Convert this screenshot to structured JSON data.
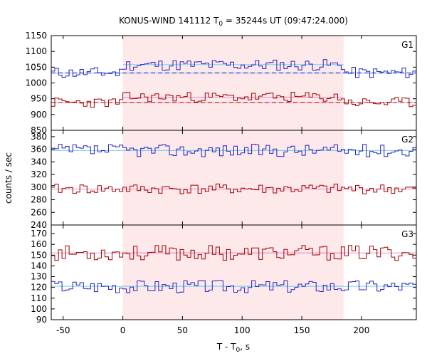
{
  "chart_data": {
    "type": "line",
    "title_main": "KONUS-WIND 141112 T",
    "title_sub": "0",
    "title_rest": " = 35244s UT (09:47:24.000)",
    "xlabel_main": "T - T",
    "xlabel_sub": "0",
    "xlabel_rest": ", s",
    "ylabel": "counts / sec",
    "xlim": [
      -60,
      246
    ],
    "xticks": [
      -50,
      0,
      50,
      100,
      150,
      200
    ],
    "xtick_labels": [
      "-50",
      "0",
      "50",
      "100",
      "150",
      "200"
    ],
    "highlight_interval": [
      0,
      185
    ],
    "highlight_color": "#fde8ea",
    "bin_width": 3,
    "colors": {
      "blue": "#2323c8",
      "red": "#a00000",
      "fit_blue": "#7ccfe6",
      "fit_red": "#e68fc9"
    },
    "panels": [
      {
        "label": "G1",
        "ylim": [
          850,
          1150
        ],
        "yticks": [
          850,
          900,
          950,
          1000,
          1050,
          1100,
          1150
        ],
        "ytick_labels": [
          "850",
          "900",
          "950",
          "1000",
          "1050",
          "1100",
          "1150"
        ],
        "series": [
          {
            "color": "blue",
            "y0": 1032,
            "y1": 1057,
            "seed": 11,
            "noise": 18
          },
          {
            "color": "red",
            "y0": 938,
            "y1": 955,
            "seed": 23,
            "noise": 16
          }
        ],
        "fit_lines": [
          {
            "color": "fit_blue",
            "y0": 1031,
            "y1": 1058
          },
          {
            "color": "fit_red",
            "y0": 938,
            "y1": 955
          }
        ],
        "background_lines": [
          {
            "color": "blue",
            "y": 1032
          },
          {
            "color": "red",
            "y": 938
          }
        ]
      },
      {
        "label": "G2",
        "ylim": [
          240,
          390
        ],
        "yticks": [
          240,
          260,
          280,
          300,
          320,
          340,
          360,
          380
        ],
        "ytick_labels": [
          "240",
          "260",
          "280",
          "300",
          "320",
          "340",
          "360",
          "380"
        ],
        "series": [
          {
            "color": "blue",
            "y0": 358,
            "y1": 358,
            "seed": 37,
            "noise": 10
          },
          {
            "color": "red",
            "y0": 297,
            "y1": 297,
            "seed": 41,
            "noise": 8
          }
        ],
        "fit_lines": [
          {
            "color": "fit_blue",
            "y0": 358,
            "y1": 358
          },
          {
            "color": "fit_red",
            "y0": 297,
            "y1": 297
          }
        ],
        "background_lines": []
      },
      {
        "label": "G3",
        "ylim": [
          90,
          178
        ],
        "yticks": [
          90,
          100,
          110,
          120,
          130,
          140,
          150,
          160,
          170
        ],
        "ytick_labels": [
          "90",
          "100",
          "110",
          "120",
          "130",
          "140",
          "150",
          "160",
          "170"
        ],
        "series": [
          {
            "color": "red",
            "y0": 152,
            "y1": 152,
            "seed": 53,
            "noise": 7
          },
          {
            "color": "blue",
            "y0": 121,
            "y1": 121,
            "seed": 67,
            "noise": 6
          }
        ],
        "fit_lines": [
          {
            "color": "fit_red",
            "y0": 152,
            "y1": 152
          },
          {
            "color": "fit_blue",
            "y0": 121,
            "y1": 121
          }
        ],
        "background_lines": []
      }
    ]
  }
}
